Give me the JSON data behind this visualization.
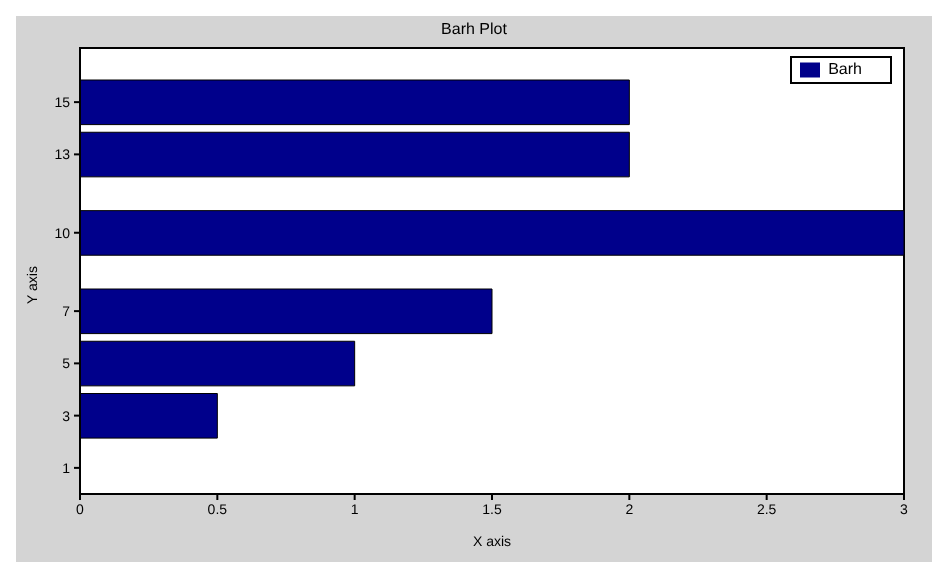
{
  "chart_data": {
    "type": "bar",
    "orientation": "horizontal",
    "title": "Barh Plot",
    "xlabel": "X axis",
    "ylabel": "Y axis",
    "x": [
      1,
      3,
      5,
      7,
      10,
      13,
      15
    ],
    "series": [
      {
        "name": "Barh",
        "color": "#00008b",
        "values": [
          0,
          0.5,
          1,
          1.5,
          3,
          2,
          2
        ]
      }
    ],
    "xlim": [
      0,
      3
    ],
    "xticks": [
      0,
      0.5,
      1,
      1.5,
      2,
      2.5,
      3
    ],
    "ylim": [
      0,
      16
    ],
    "yticks": [
      1,
      3,
      5,
      7,
      10,
      13,
      15
    ],
    "legend": "top right"
  }
}
